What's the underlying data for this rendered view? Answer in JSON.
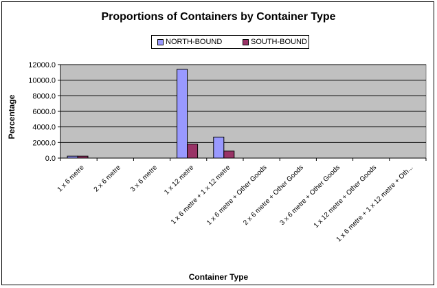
{
  "chart_data": {
    "type": "bar",
    "title": "Proportions of Containers by Container Type",
    "xlabel": "Container Type",
    "ylabel": "Percentage",
    "categories": [
      "1 x 6 metre",
      "2 x 6 metre",
      "3 x 6 metre",
      "1 x 12 metre",
      "1 x 6 metre + 1 x 12 metre",
      "1 x 6 metre + Other Goods",
      "2 x 6 metre + Other Goods",
      "3 x 6 metre + Other Goods",
      "1 x 12 metre + Other Goods",
      "1 x 6 metre + 1 x 12 metre + Oth..."
    ],
    "series": [
      {
        "name": "NORTH-BOUND",
        "color": "#9999ff",
        "values": [
          250,
          0,
          0,
          11400,
          2700,
          0,
          0,
          0,
          0,
          0
        ]
      },
      {
        "name": "SOUTH-BOUND",
        "color": "#993366",
        "values": [
          250,
          0,
          0,
          1800,
          900,
          0,
          0,
          0,
          0,
          0
        ]
      }
    ],
    "ylim": [
      0,
      12000
    ],
    "yticks": [
      "0.0",
      "2000.0",
      "4000.0",
      "6000.0",
      "8000.0",
      "10000.0",
      "12000.0"
    ],
    "grid": true,
    "legend_position": "top-center",
    "plot_background": "#c0c0c0"
  }
}
